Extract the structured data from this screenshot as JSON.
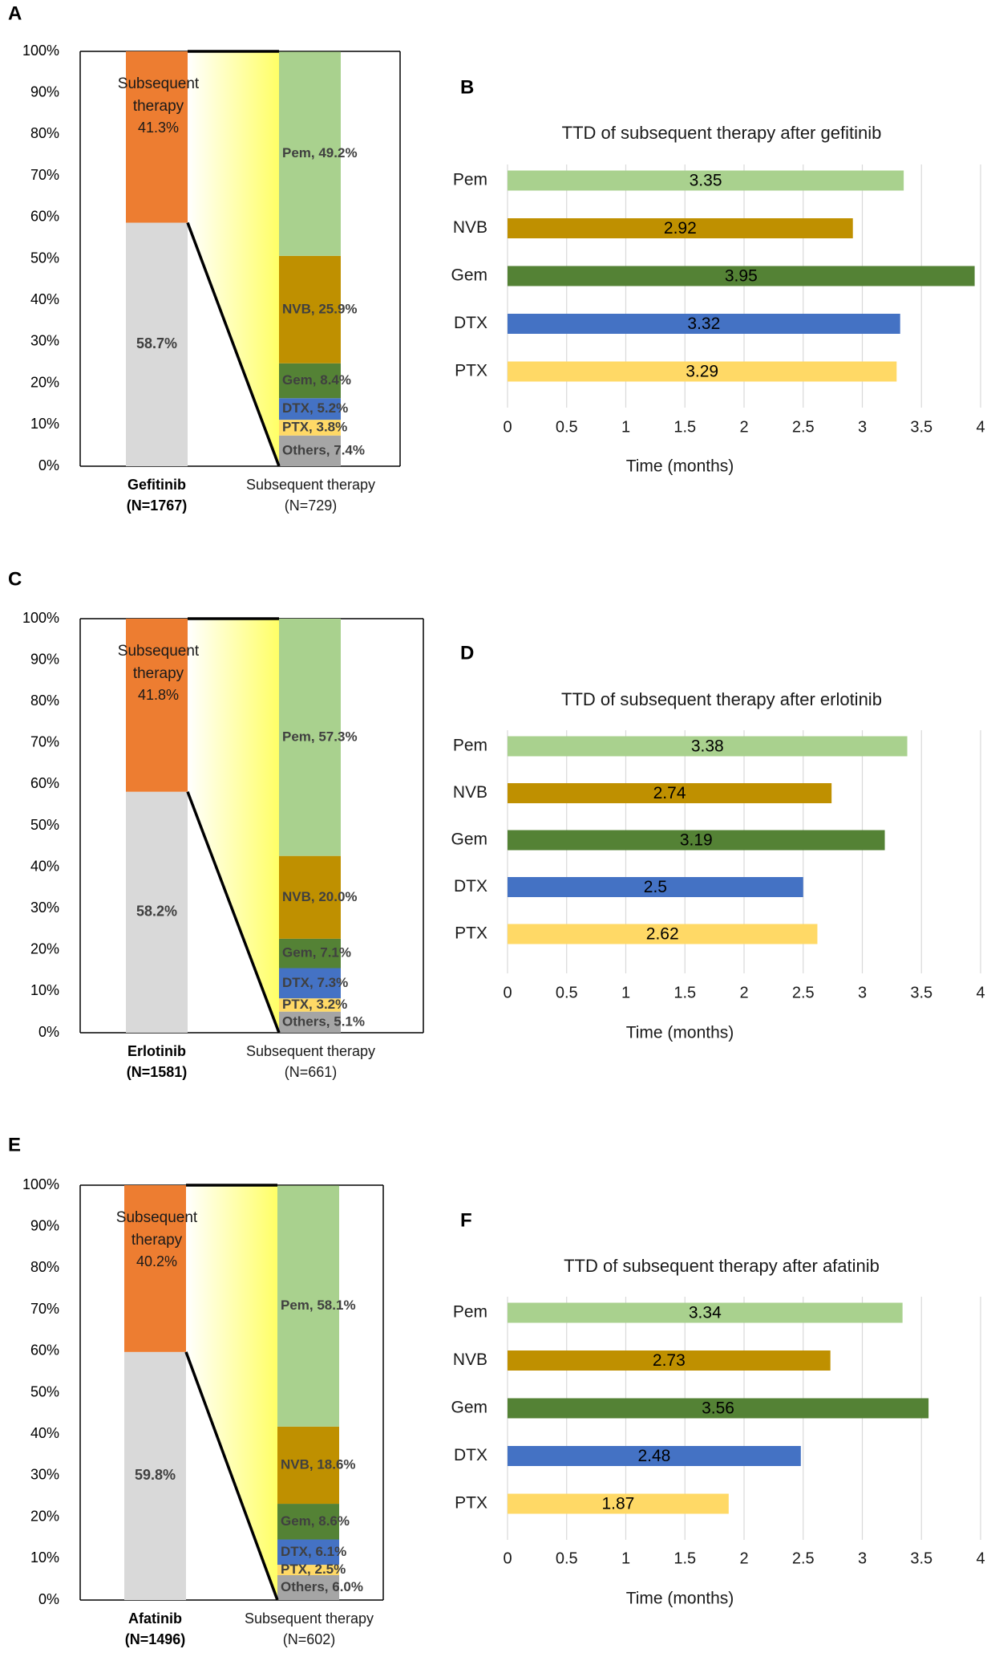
{
  "colors": {
    "subsequent": "#ED7D31",
    "none": "#D9D9D9",
    "Pem": "#A9D18E",
    "NVB": "#BF9000",
    "Gem": "#548235",
    "DTX": "#4472C4",
    "PTX": "#FFD966",
    "Others": "#A5A5A5",
    "connector_fill_start": "#FFFFFF",
    "connector_fill_end": "#FFFF66",
    "gridline": "#D9D9D9",
    "text": "#404040"
  },
  "chart_data": [
    {
      "id": "A",
      "panel_label": "A",
      "type": "stacked-bar",
      "y_ticks": [
        "0%",
        "10%",
        "20%",
        "30%",
        "40%",
        "50%",
        "60%",
        "70%",
        "80%",
        "90%",
        "100%"
      ],
      "ylim": [
        0,
        100
      ],
      "left_bar": {
        "label_line1": "Gefitinib",
        "label_line2": "(N=1767)",
        "bottom_value": 58.7,
        "bottom_label": "58.7%",
        "top_value": 41.3,
        "top_label_line1": "Subsequent",
        "top_label_line2": "therapy",
        "top_label_line3": "41.3%"
      },
      "right_bar": {
        "label_line1": "Subsequent therapy",
        "label_line2": "(N=729)",
        "segments": [
          {
            "key": "Others",
            "value": 7.4,
            "label": "Others, 7.4%"
          },
          {
            "key": "PTX",
            "value": 3.8,
            "label": "PTX, 3.8%"
          },
          {
            "key": "DTX",
            "value": 5.2,
            "label": "DTX, 5.2%"
          },
          {
            "key": "Gem",
            "value": 8.4,
            "label": "Gem, 8.4%"
          },
          {
            "key": "NVB",
            "value": 25.9,
            "label": "NVB, 25.9%"
          },
          {
            "key": "Pem",
            "value": 49.2,
            "label": "Pem, 49.2%"
          }
        ]
      }
    },
    {
      "id": "B",
      "panel_label": "B",
      "type": "bar-horizontal",
      "title": "TTD of subsequent therapy after gefitinib",
      "xlabel": "Time (months)",
      "x_ticks": [
        "0",
        "0.5",
        "1",
        "1.5",
        "2",
        "2.5",
        "3",
        "3.5",
        "4"
      ],
      "xlim": [
        0,
        4
      ],
      "categories": [
        "Pem",
        "NVB",
        "Gem",
        "DTX",
        "PTX"
      ],
      "values": [
        3.35,
        2.92,
        3.95,
        3.32,
        3.29
      ],
      "value_labels": [
        "3.35",
        "2.92",
        "3.95",
        "3.32",
        "3.29"
      ]
    },
    {
      "id": "C",
      "panel_label": "C",
      "type": "stacked-bar",
      "y_ticks": [
        "0%",
        "10%",
        "20%",
        "30%",
        "40%",
        "50%",
        "60%",
        "70%",
        "80%",
        "90%",
        "100%"
      ],
      "ylim": [
        0,
        100
      ],
      "left_bar": {
        "label_line1": "Erlotinib",
        "label_line2": "(N=1581)",
        "bottom_value": 58.2,
        "bottom_label": "58.2%",
        "top_value": 41.8,
        "top_label_line1": "Subsequent",
        "top_label_line2": "therapy",
        "top_label_line3": "41.8%"
      },
      "right_bar": {
        "label_line1": "Subsequent therapy",
        "label_line2": "(N=661)",
        "segments": [
          {
            "key": "Others",
            "value": 5.1,
            "label": "Others, 5.1%"
          },
          {
            "key": "PTX",
            "value": 3.2,
            "label": "PTX, 3.2%"
          },
          {
            "key": "DTX",
            "value": 7.3,
            "label": "DTX, 7.3%"
          },
          {
            "key": "Gem",
            "value": 7.1,
            "label": "Gem, 7.1%"
          },
          {
            "key": "NVB",
            "value": 20.0,
            "label": "NVB, 20.0%"
          },
          {
            "key": "Pem",
            "value": 57.3,
            "label": "Pem, 57.3%"
          }
        ]
      }
    },
    {
      "id": "D",
      "panel_label": "D",
      "type": "bar-horizontal",
      "title": "TTD of subsequent therapy after erlotinib",
      "xlabel": "Time (months)",
      "x_ticks": [
        "0",
        "0.5",
        "1",
        "1.5",
        "2",
        "2.5",
        "3",
        "3.5",
        "4"
      ],
      "xlim": [
        0,
        4
      ],
      "categories": [
        "Pem",
        "NVB",
        "Gem",
        "DTX",
        "PTX"
      ],
      "values": [
        3.38,
        2.74,
        3.19,
        2.5,
        2.62
      ],
      "value_labels": [
        "3.38",
        "2.74",
        "3.19",
        "2.5",
        "2.62"
      ]
    },
    {
      "id": "E",
      "panel_label": "E",
      "type": "stacked-bar",
      "y_ticks": [
        "0%",
        "10%",
        "20%",
        "30%",
        "40%",
        "50%",
        "60%",
        "70%",
        "80%",
        "90%",
        "100%"
      ],
      "ylim": [
        0,
        100
      ],
      "left_bar": {
        "label_line1": "Afatinib",
        "label_line2": "(N=1496)",
        "bottom_value": 59.8,
        "bottom_label": "59.8%",
        "top_value": 40.2,
        "top_label_line1": "Subsequent",
        "top_label_line2": "therapy",
        "top_label_line3": "40.2%"
      },
      "right_bar": {
        "label_line1": "Subsequent therapy",
        "label_line2": "(N=602)",
        "segments": [
          {
            "key": "Others",
            "value": 6.0,
            "label": "Others, 6.0%"
          },
          {
            "key": "PTX",
            "value": 2.5,
            "label": "PTX, 2.5%"
          },
          {
            "key": "DTX",
            "value": 6.1,
            "label": "DTX, 6.1%"
          },
          {
            "key": "Gem",
            "value": 8.6,
            "label": "Gem, 8.6%"
          },
          {
            "key": "NVB",
            "value": 18.6,
            "label": "NVB, 18.6%"
          },
          {
            "key": "Pem",
            "value": 58.1,
            "label": "Pem, 58.1%"
          }
        ]
      }
    },
    {
      "id": "F",
      "panel_label": "F",
      "type": "bar-horizontal",
      "title": "TTD of subsequent therapy after afatinib",
      "xlabel": "Time (months)",
      "x_ticks": [
        "0",
        "0.5",
        "1",
        "1.5",
        "2",
        "2.5",
        "3",
        "3.5",
        "4"
      ],
      "xlim": [
        0,
        4
      ],
      "categories": [
        "Pem",
        "NVB",
        "Gem",
        "DTX",
        "PTX"
      ],
      "values": [
        3.34,
        2.73,
        3.56,
        2.48,
        1.87
      ],
      "value_labels": [
        "3.34",
        "2.73",
        "3.56",
        "2.48",
        "1.87"
      ]
    }
  ]
}
